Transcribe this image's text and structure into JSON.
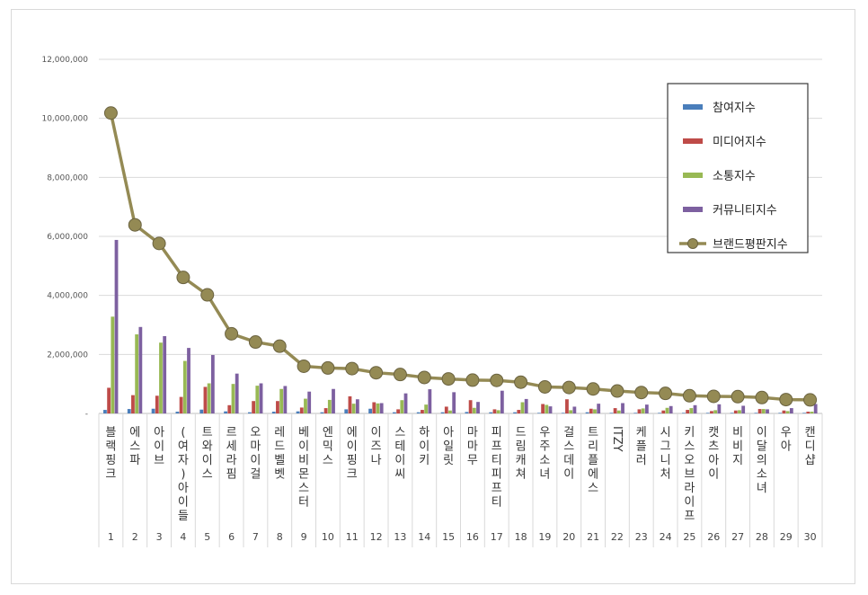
{
  "chart_data": {
    "type": "bar",
    "y_ticks": [
      "12,000,000",
      "10,000,000",
      "8,000,000",
      "6,000,000",
      "4,000,000",
      "2,000,000",
      "-"
    ],
    "ylim": [
      0,
      12000000
    ],
    "grid": true,
    "legend_position": "top-right",
    "categories": [
      "블랙핑크",
      "에스파",
      "아이브",
      "(여자)아이들",
      "트와이스",
      "르세라핌",
      "오마이걸",
      "레드벨벳",
      "베이비몬스터",
      "엔믹스",
      "에이핑크",
      "이즈나",
      "스테이씨",
      "하이키",
      "아일릿",
      "마마무",
      "피프티피프티",
      "드림캐쳐",
      "우주소녀",
      "걸스데이",
      "트리플에스",
      "ITZY",
      "케플러",
      "시그니처",
      "키스오브라이프",
      "캣츠아이",
      "비비지",
      "이달의소녀",
      "우아",
      "캔디샵"
    ],
    "ranks": [
      "1",
      "2",
      "3",
      "4",
      "5",
      "6",
      "7",
      "8",
      "9",
      "10",
      "11",
      "12",
      "13",
      "14",
      "15",
      "16",
      "17",
      "18",
      "19",
      "20",
      "21",
      "22",
      "23",
      "24",
      "25",
      "26",
      "27",
      "28",
      "29",
      "30"
    ],
    "series": [
      {
        "name": "참여지수",
        "color": "#4a7ebb",
        "kind": "bar",
        "values": [
          120000,
          150000,
          160000,
          60000,
          130000,
          70000,
          40000,
          60000,
          70000,
          40000,
          140000,
          160000,
          40000,
          40000,
          40000,
          50000,
          40000,
          40000,
          20000,
          20000,
          40000,
          20000,
          20000,
          20000,
          20000,
          20000,
          20000,
          20000,
          20000,
          20000
        ]
      },
      {
        "name": "미디어지수",
        "color": "#be4b48",
        "kind": "bar",
        "values": [
          870000,
          620000,
          600000,
          560000,
          900000,
          280000,
          420000,
          420000,
          200000,
          180000,
          580000,
          380000,
          140000,
          120000,
          230000,
          450000,
          140000,
          120000,
          320000,
          480000,
          160000,
          180000,
          140000,
          100000,
          120000,
          80000,
          100000,
          150000,
          100000,
          60000
        ]
      },
      {
        "name": "소통지수",
        "color": "#98b954",
        "kind": "bar",
        "values": [
          3280000,
          2680000,
          2400000,
          1780000,
          1020000,
          1000000,
          940000,
          830000,
          500000,
          460000,
          330000,
          340000,
          450000,
          300000,
          100000,
          190000,
          110000,
          380000,
          290000,
          110000,
          140000,
          100000,
          170000,
          190000,
          180000,
          110000,
          110000,
          150000,
          80000,
          60000
        ]
      },
      {
        "name": "커뮤니티지수",
        "color": "#7d60a0",
        "kind": "bar",
        "values": [
          5880000,
          2930000,
          2620000,
          2220000,
          1980000,
          1350000,
          1020000,
          930000,
          740000,
          830000,
          480000,
          350000,
          680000,
          820000,
          720000,
          390000,
          770000,
          490000,
          240000,
          230000,
          330000,
          350000,
          300000,
          250000,
          280000,
          310000,
          260000,
          140000,
          180000,
          320000
        ]
      },
      {
        "name": "브랜드평판지수",
        "color": "#948a54",
        "kind": "line",
        "values": [
          10180000,
          6390000,
          5760000,
          4610000,
          4020000,
          2700000,
          2420000,
          2280000,
          1600000,
          1540000,
          1520000,
          1380000,
          1320000,
          1220000,
          1170000,
          1130000,
          1120000,
          1060000,
          900000,
          880000,
          830000,
          760000,
          710000,
          680000,
          600000,
          580000,
          570000,
          540000,
          470000,
          460000
        ]
      }
    ]
  }
}
